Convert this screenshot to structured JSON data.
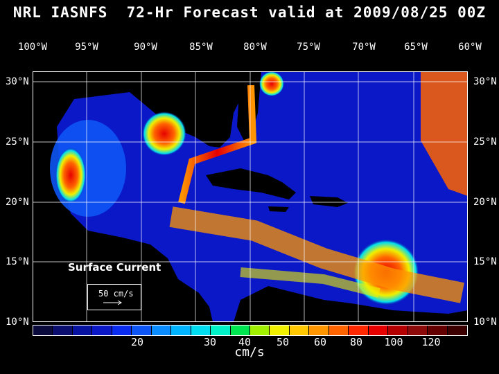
{
  "title": "NRL IASNFS  72-Hr Forecast valid at 2009/08/25 00Z",
  "lon_labels": [
    "100°W",
    "95°W",
    "90°W",
    "85°W",
    "80°W",
    "75°W",
    "70°W",
    "65°W",
    "60°W"
  ],
  "lat_labels": [
    "30°N",
    "25°N",
    "20°N",
    "15°N",
    "10°N"
  ],
  "legend": {
    "title": "Surface Current",
    "scale_label": "50 cm/s"
  },
  "colorbar": {
    "colors": [
      "#0a0a3c",
      "#0b0e6e",
      "#0812a0",
      "#0a18c8",
      "#0a2bf0",
      "#0d55f5",
      "#0a8cff",
      "#00b4ff",
      "#00dcf0",
      "#00f0c8",
      "#00e650",
      "#a0f000",
      "#f0f000",
      "#ffc800",
      "#ff9600",
      "#ff6400",
      "#ff2800",
      "#e60000",
      "#b40000",
      "#8c0a0a",
      "#640000",
      "#3c0000"
    ],
    "tick_labels": [
      "20",
      "30",
      "40",
      "50",
      "60",
      "80",
      "100",
      "120"
    ],
    "units": "cm/s"
  }
}
